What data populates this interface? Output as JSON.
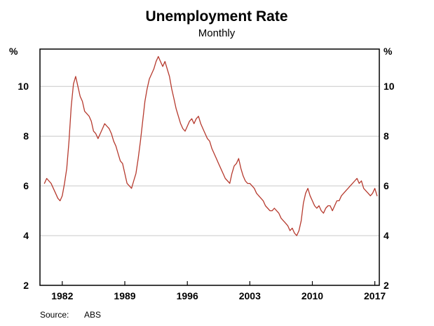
{
  "chart": {
    "title": "Unemployment Rate",
    "subtitle": "Monthly",
    "y_unit_left": "%",
    "y_unit_right": "%",
    "source_label": "Source:",
    "source_value": "ABS"
  },
  "chart_data": {
    "type": "line",
    "title": "Unemployment Rate",
    "subtitle": "Monthly",
    "xlabel": "",
    "ylabel": "%",
    "source": "ABS",
    "xlim": [
      1979.5,
      2017.5
    ],
    "ylim": [
      2,
      11.5
    ],
    "y_ticks": [
      2,
      4,
      6,
      8,
      10
    ],
    "x_ticks": [
      1982,
      1989,
      1996,
      2003,
      2010,
      2017
    ],
    "grid": "horizontal",
    "legend": "none",
    "line_color": "#b63a2e",
    "series": [
      {
        "name": "Unemployment rate (% of labour force, monthly)",
        "points": [
          [
            1980.0,
            6.1
          ],
          [
            1980.25,
            6.3
          ],
          [
            1980.5,
            6.2
          ],
          [
            1980.75,
            6.1
          ],
          [
            1981.0,
            5.9
          ],
          [
            1981.25,
            5.7
          ],
          [
            1981.5,
            5.5
          ],
          [
            1981.75,
            5.4
          ],
          [
            1982.0,
            5.6
          ],
          [
            1982.25,
            6.1
          ],
          [
            1982.5,
            6.7
          ],
          [
            1982.75,
            7.8
          ],
          [
            1983.0,
            9.2
          ],
          [
            1983.25,
            10.1
          ],
          [
            1983.5,
            10.4
          ],
          [
            1983.75,
            10.0
          ],
          [
            1984.0,
            9.6
          ],
          [
            1984.25,
            9.4
          ],
          [
            1984.5,
            9.0
          ],
          [
            1984.75,
            8.9
          ],
          [
            1985.0,
            8.8
          ],
          [
            1985.25,
            8.6
          ],
          [
            1985.5,
            8.2
          ],
          [
            1985.75,
            8.1
          ],
          [
            1986.0,
            7.9
          ],
          [
            1986.25,
            8.1
          ],
          [
            1986.5,
            8.3
          ],
          [
            1986.75,
            8.5
          ],
          [
            1987.0,
            8.4
          ],
          [
            1987.25,
            8.3
          ],
          [
            1987.5,
            8.1
          ],
          [
            1987.75,
            7.8
          ],
          [
            1988.0,
            7.6
          ],
          [
            1988.25,
            7.3
          ],
          [
            1988.5,
            7.0
          ],
          [
            1988.75,
            6.9
          ],
          [
            1989.0,
            6.5
          ],
          [
            1989.25,
            6.1
          ],
          [
            1989.5,
            6.0
          ],
          [
            1989.75,
            5.9
          ],
          [
            1990.0,
            6.2
          ],
          [
            1990.25,
            6.5
          ],
          [
            1990.5,
            7.1
          ],
          [
            1990.75,
            7.8
          ],
          [
            1991.0,
            8.6
          ],
          [
            1991.25,
            9.4
          ],
          [
            1991.5,
            9.9
          ],
          [
            1991.75,
            10.3
          ],
          [
            1992.0,
            10.5
          ],
          [
            1992.25,
            10.7
          ],
          [
            1992.5,
            11.0
          ],
          [
            1992.75,
            11.2
          ],
          [
            1993.0,
            11.0
          ],
          [
            1993.25,
            10.8
          ],
          [
            1993.5,
            11.0
          ],
          [
            1993.75,
            10.7
          ],
          [
            1994.0,
            10.4
          ],
          [
            1994.25,
            9.9
          ],
          [
            1994.5,
            9.5
          ],
          [
            1994.75,
            9.1
          ],
          [
            1995.0,
            8.8
          ],
          [
            1995.25,
            8.5
          ],
          [
            1995.5,
            8.3
          ],
          [
            1995.75,
            8.2
          ],
          [
            1996.0,
            8.4
          ],
          [
            1996.25,
            8.6
          ],
          [
            1996.5,
            8.7
          ],
          [
            1996.75,
            8.5
          ],
          [
            1997.0,
            8.7
          ],
          [
            1997.25,
            8.8
          ],
          [
            1997.5,
            8.5
          ],
          [
            1997.75,
            8.3
          ],
          [
            1998.0,
            8.1
          ],
          [
            1998.25,
            7.9
          ],
          [
            1998.5,
            7.8
          ],
          [
            1998.75,
            7.5
          ],
          [
            1999.0,
            7.3
          ],
          [
            1999.25,
            7.1
          ],
          [
            1999.5,
            6.9
          ],
          [
            1999.75,
            6.7
          ],
          [
            2000.0,
            6.5
          ],
          [
            2000.25,
            6.3
          ],
          [
            2000.5,
            6.2
          ],
          [
            2000.75,
            6.1
          ],
          [
            2001.0,
            6.5
          ],
          [
            2001.25,
            6.8
          ],
          [
            2001.5,
            6.9
          ],
          [
            2001.75,
            7.1
          ],
          [
            2002.0,
            6.7
          ],
          [
            2002.25,
            6.4
          ],
          [
            2002.5,
            6.2
          ],
          [
            2002.75,
            6.1
          ],
          [
            2003.0,
            6.1
          ],
          [
            2003.25,
            6.0
          ],
          [
            2003.5,
            5.9
          ],
          [
            2003.75,
            5.7
          ],
          [
            2004.0,
            5.6
          ],
          [
            2004.25,
            5.5
          ],
          [
            2004.5,
            5.4
          ],
          [
            2004.75,
            5.2
          ],
          [
            2005.0,
            5.1
          ],
          [
            2005.25,
            5.0
          ],
          [
            2005.5,
            5.0
          ],
          [
            2005.75,
            5.1
          ],
          [
            2006.0,
            5.0
          ],
          [
            2006.25,
            4.9
          ],
          [
            2006.5,
            4.7
          ],
          [
            2006.75,
            4.6
          ],
          [
            2007.0,
            4.5
          ],
          [
            2007.25,
            4.4
          ],
          [
            2007.5,
            4.2
          ],
          [
            2007.75,
            4.3
          ],
          [
            2008.0,
            4.1
          ],
          [
            2008.25,
            4.0
          ],
          [
            2008.5,
            4.2
          ],
          [
            2008.75,
            4.6
          ],
          [
            2009.0,
            5.3
          ],
          [
            2009.25,
            5.7
          ],
          [
            2009.5,
            5.9
          ],
          [
            2009.75,
            5.6
          ],
          [
            2010.0,
            5.4
          ],
          [
            2010.25,
            5.2
          ],
          [
            2010.5,
            5.1
          ],
          [
            2010.75,
            5.2
          ],
          [
            2011.0,
            5.0
          ],
          [
            2011.25,
            4.9
          ],
          [
            2011.5,
            5.1
          ],
          [
            2011.75,
            5.2
          ],
          [
            2012.0,
            5.2
          ],
          [
            2012.25,
            5.0
          ],
          [
            2012.5,
            5.2
          ],
          [
            2012.75,
            5.4
          ],
          [
            2013.0,
            5.4
          ],
          [
            2013.25,
            5.6
          ],
          [
            2013.5,
            5.7
          ],
          [
            2013.75,
            5.8
          ],
          [
            2014.0,
            5.9
          ],
          [
            2014.25,
            6.0
          ],
          [
            2014.5,
            6.1
          ],
          [
            2014.75,
            6.2
          ],
          [
            2015.0,
            6.3
          ],
          [
            2015.25,
            6.1
          ],
          [
            2015.5,
            6.2
          ],
          [
            2015.75,
            5.9
          ],
          [
            2016.0,
            5.8
          ],
          [
            2016.25,
            5.7
          ],
          [
            2016.5,
            5.6
          ],
          [
            2016.75,
            5.7
          ],
          [
            2017.0,
            5.9
          ],
          [
            2017.25,
            5.6
          ]
        ]
      }
    ]
  }
}
